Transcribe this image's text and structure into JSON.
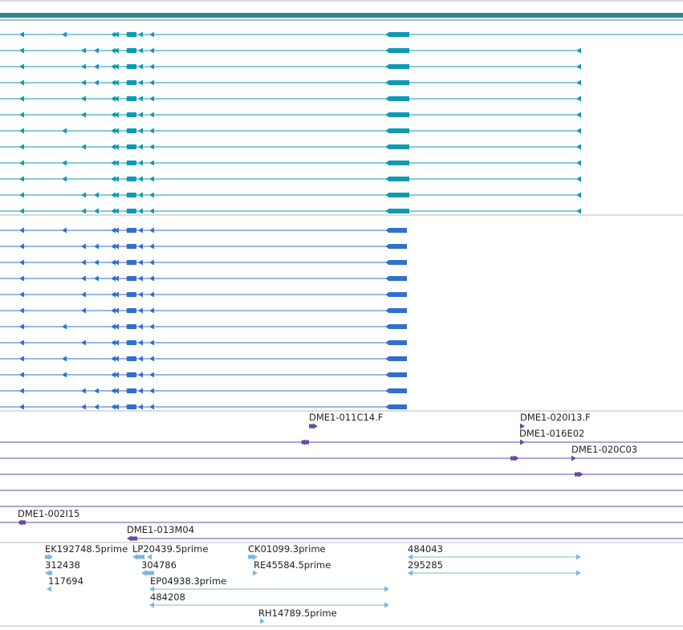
{
  "colors": {
    "ruler": "#2e8a8f",
    "track1": "#0d9ab3",
    "track2": "#2f6fd0",
    "track3": "#6a4a9e",
    "track4": "#7ab8de",
    "separator": "#bbbbbb"
  },
  "ruler": {
    "label": ""
  },
  "tracks": [
    {
      "id": "transcripts-a",
      "color": "#0d9ab3",
      "rows": 12,
      "extends_right": true
    },
    {
      "id": "transcripts-b",
      "color": "#2f6fd0",
      "rows": 12,
      "extends_right": false
    }
  ],
  "bac_clones": {
    "labels": [
      {
        "text": "DME1-011C14.F"
      },
      {
        "text": "DME1-020I13.F"
      },
      {
        "text": "DME1-016E02"
      },
      {
        "text": "DME1-020C03"
      },
      {
        "text": "DME1-002I15"
      },
      {
        "text": "DME1-013M04"
      }
    ]
  },
  "est_features": {
    "labels": [
      {
        "text": "EK192748.5prime"
      },
      {
        "text": "LP20439.5prime"
      },
      {
        "text": "CK01099.3prime"
      },
      {
        "text": "484043"
      },
      {
        "text": "312438"
      },
      {
        "text": "304786"
      },
      {
        "text": "RE45584.5prime"
      },
      {
        "text": "295285"
      },
      {
        "text": "117694"
      },
      {
        "text": "EP04938.3prime"
      },
      {
        "text": "484208"
      },
      {
        "text": "RH14789.5prime"
      }
    ]
  }
}
